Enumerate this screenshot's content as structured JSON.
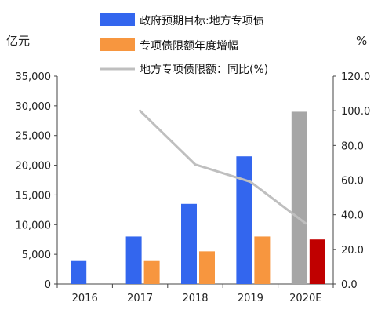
{
  "chart_data": {
    "type": "bar",
    "categories": [
      "2016",
      "2017",
      "2018",
      "2019",
      "2020E"
    ],
    "left_axis_unit": "亿元",
    "right_axis_unit": "%",
    "ylim_left": [
      0,
      35000
    ],
    "ylim_right": [
      0,
      120
    ],
    "yticks_left": [
      "0",
      "5,000",
      "10,000",
      "15,000",
      "20,000",
      "25,000",
      "30,000",
      "35,000"
    ],
    "yticks_right": [
      "0.0",
      "20.0",
      "40.0",
      "60.0",
      "80.0",
      "100.0",
      "120.0"
    ],
    "series": [
      {
        "name": "政府预期目标:地方专项债",
        "type": "bar",
        "axis": "left",
        "color": "#3366ee",
        "highlight_color": "#a6a6a6",
        "highlight_category": "2020E",
        "values": [
          4000,
          8000,
          13500,
          21500,
          29000
        ]
      },
      {
        "name": "专项债限额年度增幅",
        "type": "bar",
        "axis": "left",
        "color": "#f7963f",
        "highlight_color": "#c00000",
        "highlight_category": "2020E",
        "values": [
          null,
          4000,
          5500,
          8000,
          7500
        ]
      },
      {
        "name": "地方专项债限额：同比(%)",
        "type": "line",
        "axis": "right",
        "color": "#bfbfbf",
        "values": [
          null,
          100,
          69,
          59,
          35
        ]
      }
    ],
    "legend_position": "top"
  }
}
